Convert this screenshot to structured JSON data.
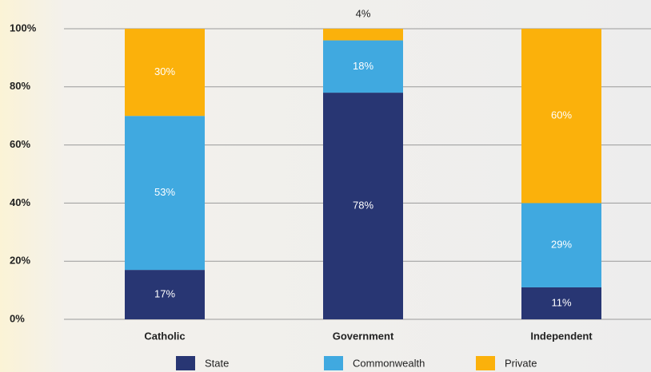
{
  "chart_data": {
    "type": "stacked_bar",
    "categories": [
      "Catholic",
      "Government",
      "Independent"
    ],
    "series": [
      {
        "name": "State",
        "color": "#283673",
        "values": [
          17,
          78,
          11
        ],
        "value_labels": [
          "17%",
          "78%",
          "11%"
        ]
      },
      {
        "name": "Commonwealth",
        "color": "#40a9e0",
        "values": [
          53,
          18,
          29
        ],
        "value_labels": [
          "53%",
          "18%",
          "29%"
        ]
      },
      {
        "name": "Private",
        "color": "#fbb10b",
        "values": [
          30,
          4,
          60
        ],
        "value_labels": [
          "30%",
          "4%",
          "60%"
        ]
      }
    ],
    "ylim": [
      0,
      100
    ],
    "yticks": [
      {
        "value": 0,
        "label": "0%"
      },
      {
        "value": 20,
        "label": "20%"
      },
      {
        "value": 40,
        "label": "40%"
      },
      {
        "value": 60,
        "label": "60%"
      },
      {
        "value": 80,
        "label": "80%"
      },
      {
        "value": 100,
        "label": "100%"
      }
    ],
    "grid": true,
    "legend": "bottom"
  }
}
